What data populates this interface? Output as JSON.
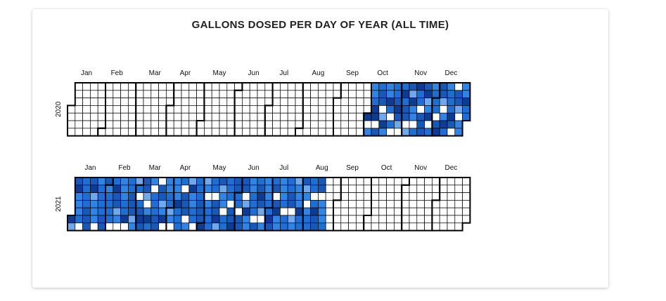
{
  "title": "GALLONS DOSED PER DAY OF YEAR (ALL TIME)",
  "chart_data": {
    "type": "heatmap",
    "title": "GALLONS DOSED PER DAY OF YEAR (ALL TIME)",
    "layout": "calendar-week-by-weekday",
    "colors": {
      "empty": "#ffffff",
      "levels": [
        "#2f84e6",
        "#1d6fd6",
        "#1858b8",
        "#0e3b94",
        "#6fa8ec"
      ],
      "border": "#000000"
    },
    "years": [
      {
        "label": "2020",
        "months": [
          "Jan",
          "Feb",
          "Mar",
          "Apr",
          "May",
          "Jun",
          "Jul",
          "Aug",
          "Sep",
          "Oct",
          "Nov",
          "Dec"
        ],
        "data_start": "2020-10-01",
        "data_end": "2020-12-31",
        "empty_dates": [
          "2020-10-02",
          "2020-10-09",
          "2020-10-14",
          "2020-10-22",
          "2020-10-24",
          "2020-10-31",
          "2020-11-06",
          "2020-11-13",
          "2020-11-18",
          "2020-11-27",
          "2020-12-03",
          "2020-12-09",
          "2020-12-19",
          "2020-12-20",
          "2020-12-24"
        ],
        "dark_dates": [
          "2020-10-01",
          "2020-10-07",
          "2020-10-08",
          "2020-10-16",
          "2020-10-20",
          "2020-10-28",
          "2020-11-02",
          "2020-11-10",
          "2020-11-15",
          "2020-11-23",
          "2020-11-26",
          "2020-12-05",
          "2020-12-11",
          "2020-12-17",
          "2020-12-29"
        ]
      },
      {
        "label": "2021",
        "months": [
          "Jan",
          "Feb",
          "Mar",
          "Apr",
          "May",
          "Jun",
          "Jul",
          "Aug",
          "Sep",
          "Oct",
          "Nov",
          "Dec"
        ],
        "data_start": "2021-01-01",
        "data_end": "2021-08-21",
        "empty_dates": [
          "2021-01-09",
          "2021-01-23",
          "2021-02-06",
          "2021-02-13",
          "2021-02-20",
          "2021-03-02",
          "2021-03-10",
          "2021-03-15",
          "2021-03-21",
          "2021-03-27",
          "2021-04-03",
          "2021-04-12",
          "2021-04-16",
          "2021-04-24",
          "2021-05-04",
          "2021-05-11",
          "2021-05-20",
          "2021-05-26",
          "2021-06-03",
          "2021-06-08",
          "2021-06-18",
          "2021-06-25",
          "2021-07-06",
          "2021-07-15",
          "2021-07-22",
          "2021-08-04",
          "2021-08-10",
          "2021-08-17"
        ],
        "dark_dates": [
          "2021-01-01",
          "2021-01-04",
          "2021-01-18",
          "2021-02-08",
          "2021-02-19",
          "2021-03-05",
          "2021-03-12",
          "2021-03-26",
          "2021-04-07",
          "2021-04-19",
          "2021-05-01",
          "2021-05-14",
          "2021-05-29",
          "2021-06-10",
          "2021-06-22",
          "2021-07-02",
          "2021-07-08",
          "2021-07-29",
          "2021-08-12"
        ]
      }
    ],
    "y_label_side": "left",
    "x_labels": "month names above each year"
  }
}
